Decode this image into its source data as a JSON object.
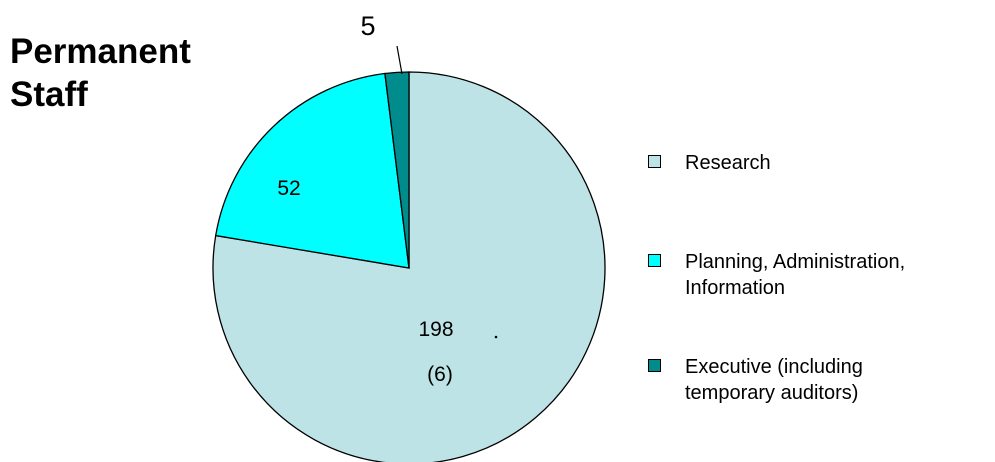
{
  "chart_data": {
    "type": "pie",
    "title_lines": [
      "Permanent",
      "Staff"
    ],
    "slices": [
      {
        "label": "Research",
        "value": 198,
        "data_label": [
          "198",
          "(6)"
        ],
        "color": "#bde3e6"
      },
      {
        "label": "Planning, Administration, Information",
        "value": 52,
        "data_label": [
          "52"
        ],
        "color": "#00ffff"
      },
      {
        "label": "Executive (including temporary auditors)",
        "value": 5,
        "data_label": [
          "5"
        ],
        "color": "#008c8c"
      }
    ],
    "legend": {
      "position": "right",
      "entries": [
        {
          "lines": [
            "Research"
          ],
          "color": "#bde3e6"
        },
        {
          "lines": [
            "Planning, Administration,",
            "Information"
          ],
          "color": "#00ffff"
        },
        {
          "lines": [
            "Executive (including",
            "temporary auditors)"
          ],
          "color": "#008c8c"
        }
      ]
    }
  }
}
